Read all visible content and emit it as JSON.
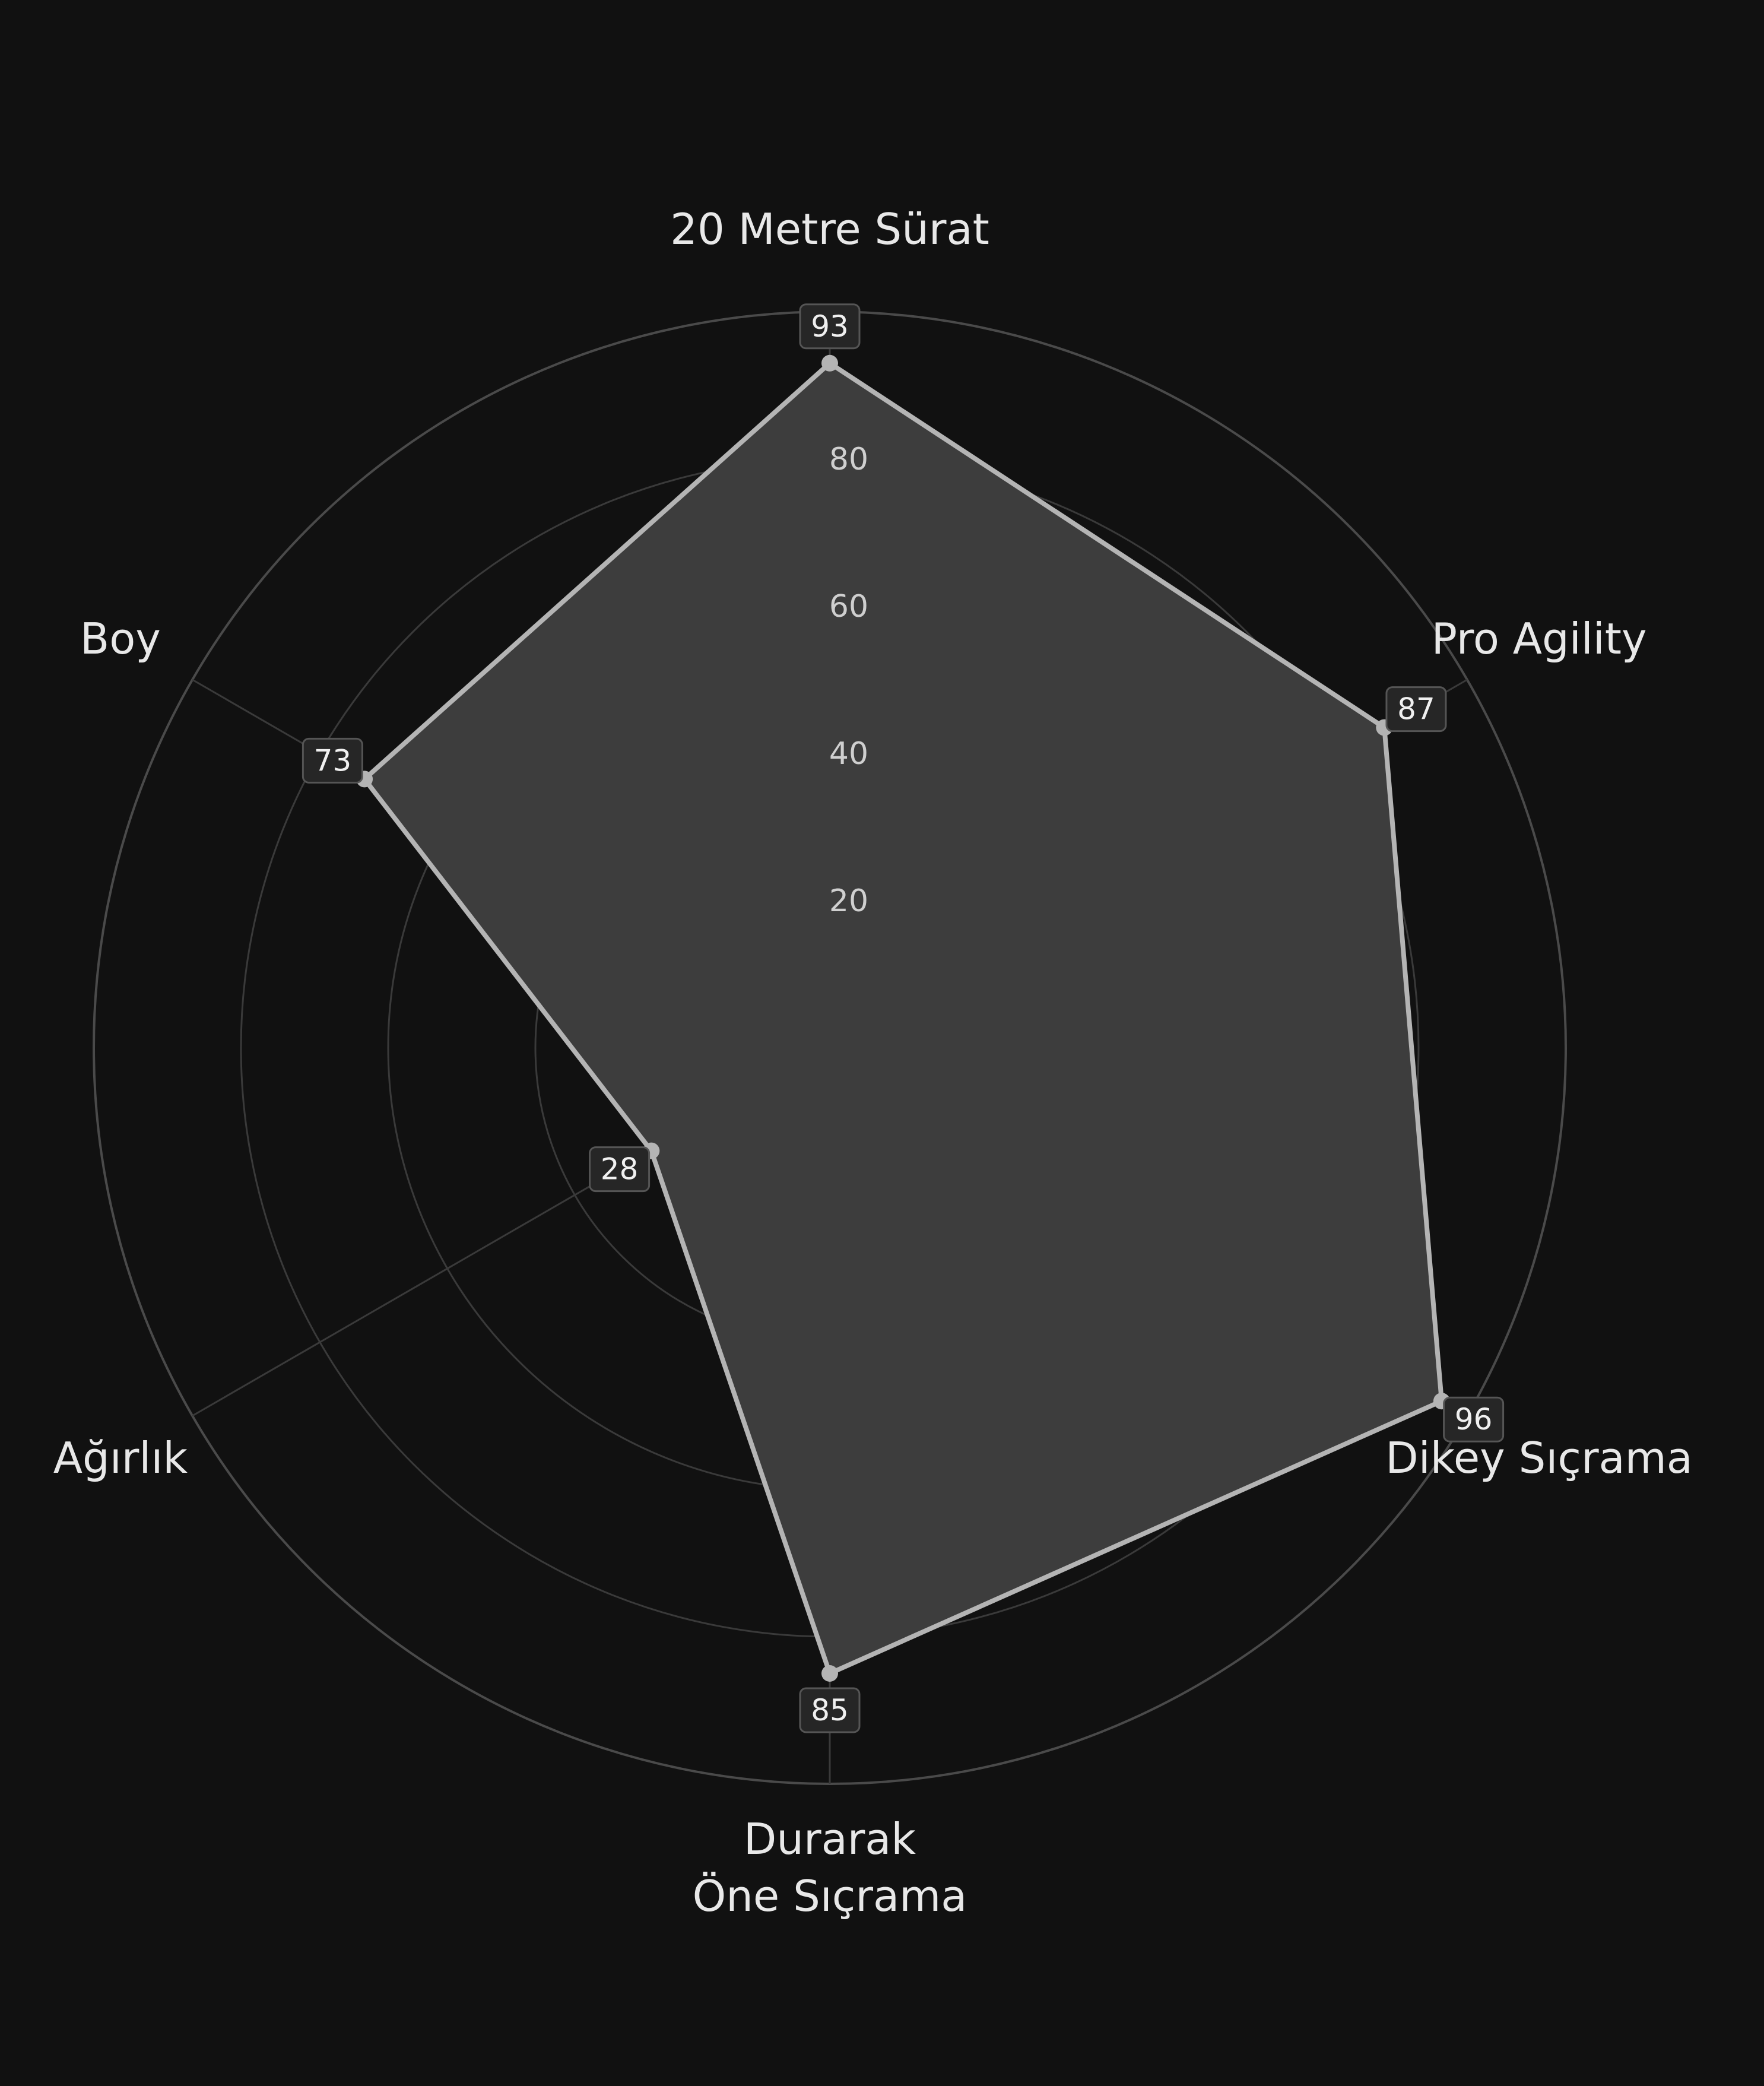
{
  "chart_data": {
    "type": "radar",
    "title": "",
    "axes": [
      {
        "label": [
          "20 Metre Sürat"
        ],
        "value": 93
      },
      {
        "label": [
          "Pro Agility"
        ],
        "value": 87
      },
      {
        "label": [
          "Dikey Sıçrama"
        ],
        "value": 96
      },
      {
        "label": [
          "Durarak",
          "Öne Sıçrama"
        ],
        "value": 85
      },
      {
        "label": [
          "Ağırlık"
        ],
        "value": 28
      },
      {
        "label": [
          "Boy"
        ],
        "value": 73
      }
    ],
    "rlim": [
      0,
      100
    ],
    "ticks": [
      20,
      40,
      60,
      80
    ],
    "tick_labels": [
      "20",
      "40",
      "60",
      "80"
    ],
    "grid": true,
    "legend": "none",
    "colors": {
      "background": "#111111",
      "fill": "#3d3d3d",
      "stroke": "#b4b4b4",
      "grid": "#3a3a3a",
      "outer_ring": "#4a4a4a",
      "label_box": "#262626"
    }
  }
}
